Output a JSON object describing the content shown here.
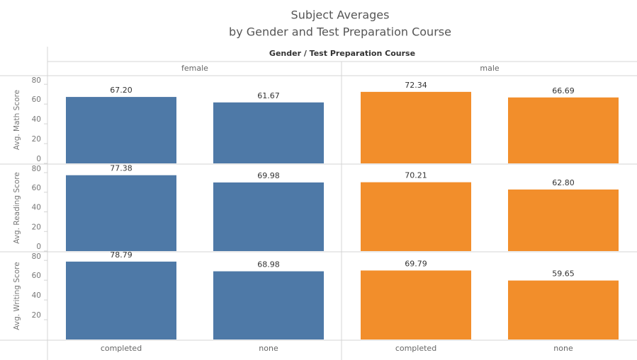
{
  "chart_data": {
    "type": "bar",
    "title": "Subject Averages",
    "subtitle": "by Gender and Test Preparation Course",
    "header": "Gender / Test Preparation Course",
    "groups": [
      "female",
      "male"
    ],
    "colors": [
      "#4e79a7",
      "#f28e2b"
    ],
    "categories": [
      "completed",
      "none"
    ],
    "ylim": [
      0,
      88
    ],
    "rows": [
      {
        "label": "Avg. Math Score",
        "yticks": [
          0,
          20,
          40,
          60,
          80
        ],
        "values": [
          [
            67.2,
            61.67
          ],
          [
            72.34,
            66.69
          ]
        ],
        "value_labels": [
          [
            "67.20",
            "61.67"
          ],
          [
            "72.34",
            "66.69"
          ]
        ]
      },
      {
        "label": "Avg. Reading Score",
        "yticks": [
          0,
          20,
          40,
          60,
          80
        ],
        "values": [
          [
            77.38,
            69.98
          ],
          [
            70.21,
            62.8
          ]
        ],
        "value_labels": [
          [
            "77.38",
            "69.98"
          ],
          [
            "70.21",
            "62.80"
          ]
        ]
      },
      {
        "label": "Avg. Writing Score",
        "yticks": [
          20,
          40,
          60,
          80
        ],
        "values": [
          [
            78.79,
            68.98
          ],
          [
            69.79,
            59.65
          ]
        ],
        "value_labels": [
          [
            "78.79",
            "68.98"
          ],
          [
            "69.79",
            "59.65"
          ]
        ]
      }
    ]
  }
}
